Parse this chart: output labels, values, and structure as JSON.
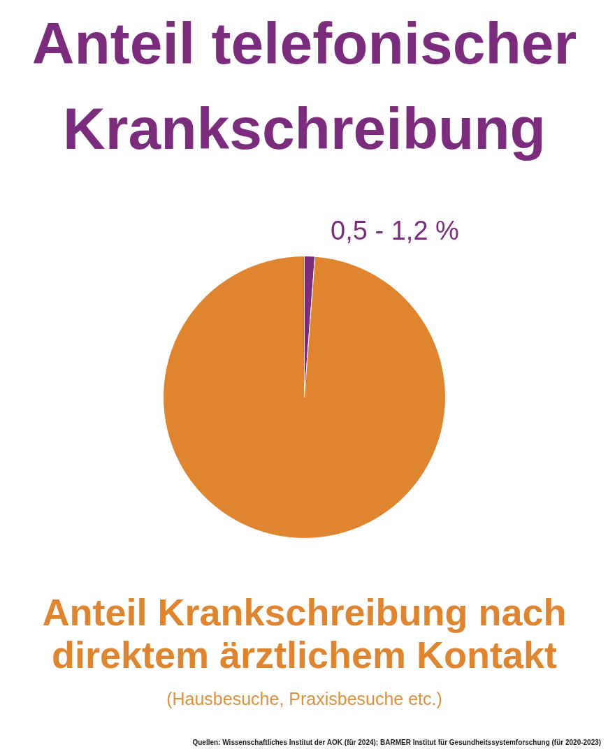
{
  "chart_data": {
    "type": "pie",
    "categories": [
      "Anteil telefonischer Krankschreibung",
      "Anteil Krankschreibung nach direktem ärztlichem Kontakt"
    ],
    "values": [
      1.2,
      98.8
    ],
    "colors": [
      "#7b2c7d",
      "#e0852f"
    ],
    "annotations": [
      "0,5 - 1,2 %",
      "(Hausbesuche, Praxisbesuche etc.)",
      "Quellen: Wissenschaftliches Institut der AOK (für 2024); BARMER Institut für Gesundheitssystemforschung (für 2020-2023)"
    ]
  }
}
